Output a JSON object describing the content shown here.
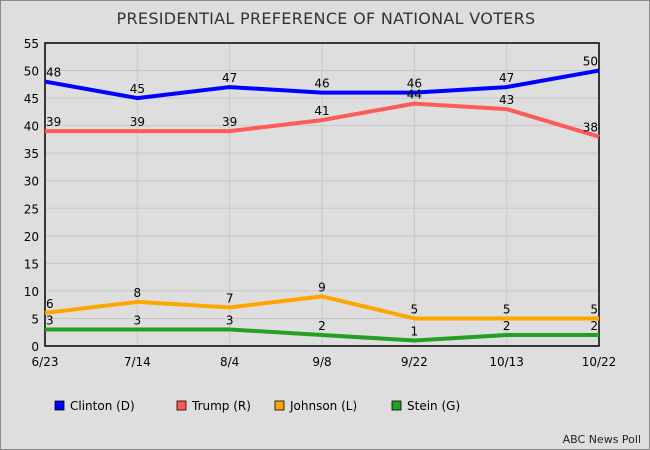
{
  "chart_data": {
    "type": "line",
    "title": "PRESIDENTIAL PREFERENCE OF NATIONAL VOTERS",
    "categories": [
      "6/23",
      "7/14",
      "8/4",
      "9/8",
      "9/22",
      "10/13",
      "10/22"
    ],
    "ylim": [
      0,
      55
    ],
    "yticks": [
      0,
      5,
      10,
      15,
      20,
      25,
      30,
      35,
      40,
      45,
      50,
      55
    ],
    "grid": true,
    "legend_position": "bottom",
    "series": [
      {
        "name": "Clinton (D)",
        "color": "#0000ff",
        "values": [
          48,
          45,
          47,
          46,
          46,
          47,
          50
        ]
      },
      {
        "name": "Trump (R)",
        "color": "#ff5a5a",
        "values": [
          39,
          39,
          39,
          41,
          44,
          43,
          38
        ]
      },
      {
        "name": "Johnson (L)",
        "color": "#ffa500",
        "values": [
          6,
          8,
          7,
          9,
          5,
          5,
          5
        ]
      },
      {
        "name": "Stein (G)",
        "color": "#22a022",
        "values": [
          3,
          3,
          3,
          2,
          1,
          2,
          2
        ]
      }
    ],
    "source": "ABC News Poll"
  }
}
